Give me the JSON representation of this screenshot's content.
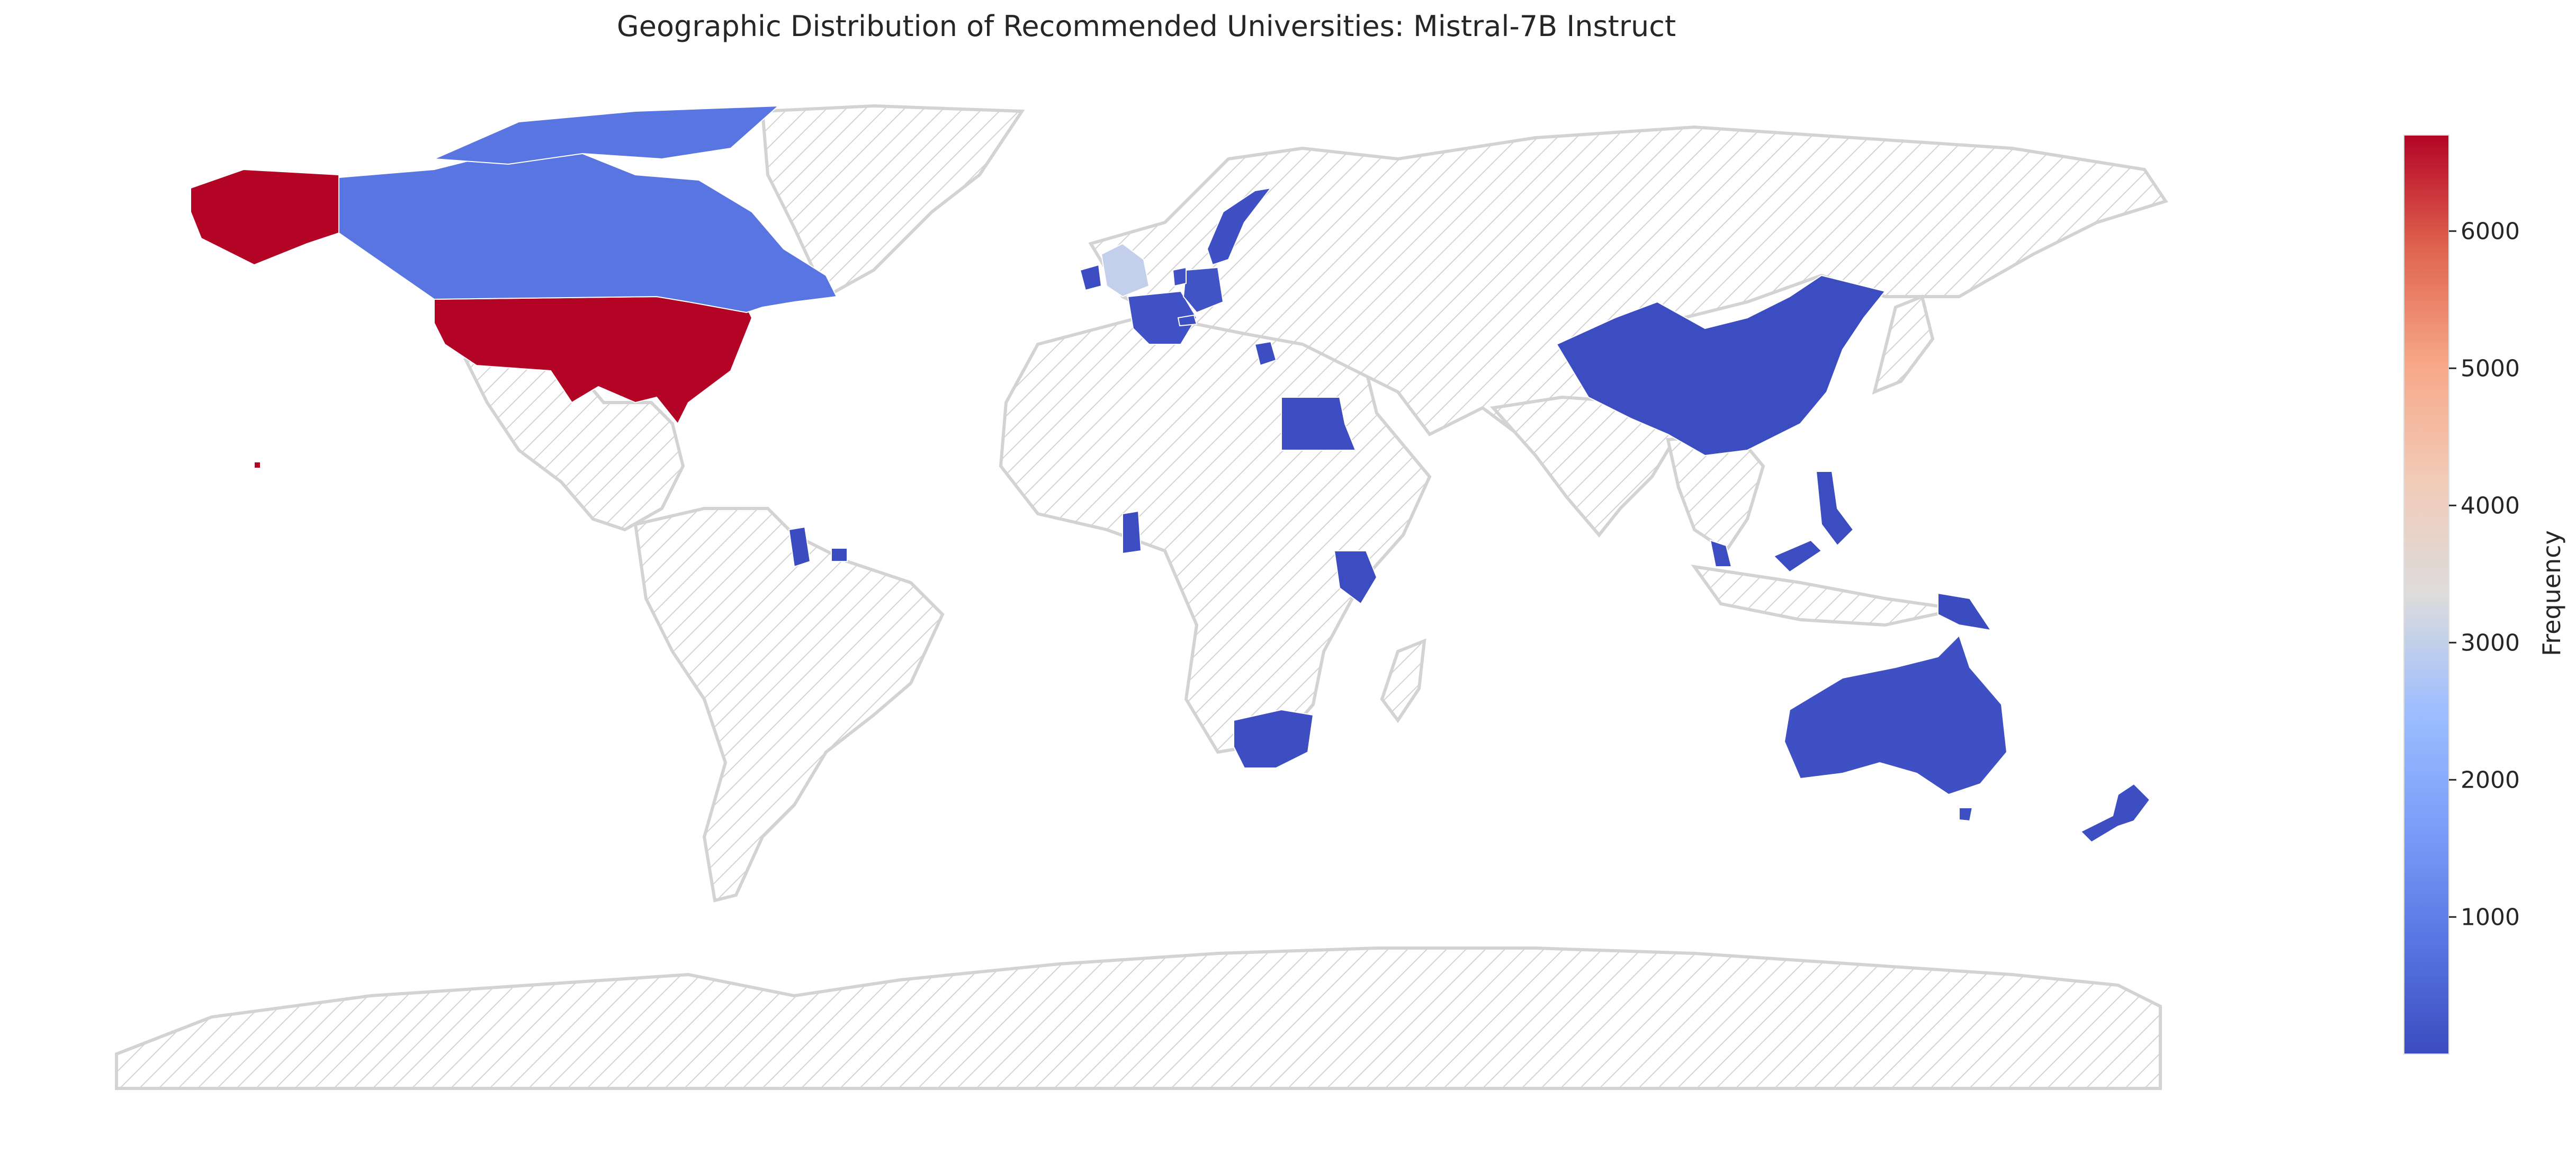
{
  "chart_data": {
    "type": "choropleth",
    "title": "Geographic Distribution of Recommended Universities: Mistral-7B Instruct",
    "colorbar": {
      "label": "Frequency",
      "colormap": "coolwarm",
      "range": [
        1,
        6700
      ],
      "ticks": [
        1000,
        2000,
        3000,
        4000,
        5000,
        6000
      ],
      "tick_labels": [
        "1000",
        "2000",
        "3000",
        "4000",
        "5000",
        "6000"
      ]
    },
    "no_data_style": "light gray hatched",
    "countries": [
      {
        "name": "United States",
        "value": 6700
      },
      {
        "name": "Canada",
        "value": 800
      },
      {
        "name": "United Kingdom",
        "value": 3000
      },
      {
        "name": "France",
        "value": 100
      },
      {
        "name": "Germany",
        "value": 150
      },
      {
        "name": "Netherlands",
        "value": 100
      },
      {
        "name": "Belgium",
        "value": 50
      },
      {
        "name": "Switzerland",
        "value": 50
      },
      {
        "name": "Sweden",
        "value": 80
      },
      {
        "name": "Greece",
        "value": 40
      },
      {
        "name": "Egypt",
        "value": 40
      },
      {
        "name": "China",
        "value": 30
      },
      {
        "name": "Australia",
        "value": 80
      },
      {
        "name": "New Zealand",
        "value": 40
      },
      {
        "name": "South Africa",
        "value": 40
      },
      {
        "name": "Kenya",
        "value": 20
      },
      {
        "name": "Ghana",
        "value": 20
      },
      {
        "name": "Guyana",
        "value": 10
      },
      {
        "name": "Suriname",
        "value": 10
      },
      {
        "name": "Philippines",
        "value": 20
      },
      {
        "name": "Malaysia",
        "value": 20
      },
      {
        "name": "Papua New Guinea",
        "value": 10
      },
      {
        "name": "Ireland",
        "value": 20
      }
    ]
  },
  "colors": {
    "no_data_edge": "#d3d3d3",
    "border": "#ffffff"
  }
}
